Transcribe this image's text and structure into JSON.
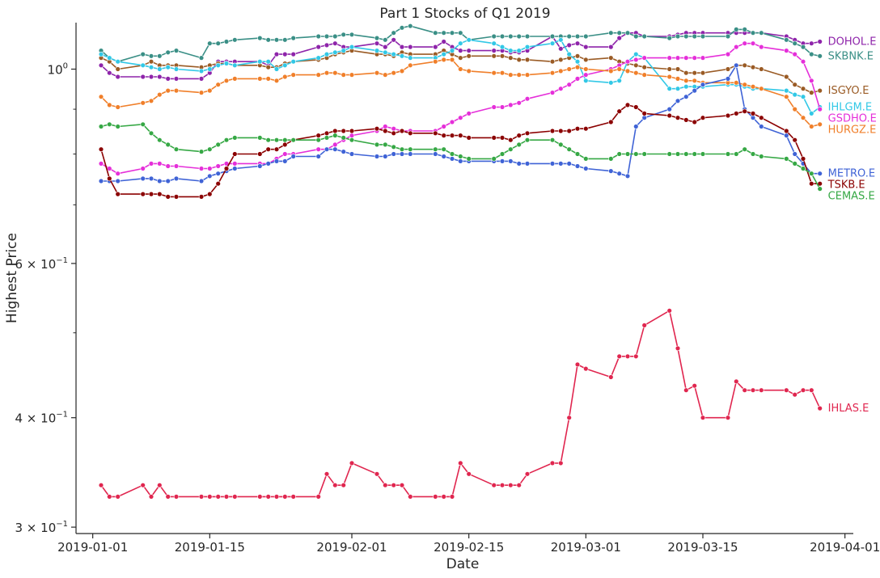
{
  "chart_data": {
    "type": "line",
    "title": "Part 1 Stocks of Q1 2019",
    "xlabel": "Date",
    "ylabel": "Highest Price",
    "yscale": "log",
    "ylim": [
      0.295,
      1.13
    ],
    "xlim": [
      "2018-12-30",
      "2019-04-02"
    ],
    "x_ticks": [
      "2019-01-01",
      "2019-01-15",
      "2019-02-01",
      "2019-02-15",
      "2019-03-01",
      "2019-03-15",
      "2019-04-01"
    ],
    "y_ticks": [
      {
        "label": "3 × 10",
        "exp": "−1",
        "value": 0.3
      },
      {
        "label": "4 × 10",
        "exp": "−1",
        "value": 0.4
      },
      {
        "label": "6 × 10",
        "exp": "−1",
        "value": 0.6
      },
      {
        "label": "10",
        "exp": "0",
        "value": 1.0
      }
    ],
    "grid": false,
    "legend": "inline labels at right end of each series",
    "dates": [
      "2019-01-02",
      "2019-01-03",
      "2019-01-04",
      "2019-01-07",
      "2019-01-08",
      "2019-01-09",
      "2019-01-10",
      "2019-01-11",
      "2019-01-14",
      "2019-01-15",
      "2019-01-16",
      "2019-01-17",
      "2019-01-18",
      "2019-01-21",
      "2019-01-22",
      "2019-01-23",
      "2019-01-24",
      "2019-01-25",
      "2019-01-28",
      "2019-01-29",
      "2019-01-30",
      "2019-01-31",
      "2019-02-01",
      "2019-02-04",
      "2019-02-05",
      "2019-02-06",
      "2019-02-07",
      "2019-02-08",
      "2019-02-11",
      "2019-02-12",
      "2019-02-13",
      "2019-02-14",
      "2019-02-15",
      "2019-02-18",
      "2019-02-19",
      "2019-02-20",
      "2019-02-21",
      "2019-02-22",
      "2019-02-25",
      "2019-02-26",
      "2019-02-27",
      "2019-02-28",
      "2019-03-01",
      "2019-03-04",
      "2019-03-05",
      "2019-03-06",
      "2019-03-07",
      "2019-03-08",
      "2019-03-11",
      "2019-03-12",
      "2019-03-13",
      "2019-03-14",
      "2019-03-15",
      "2019-03-18",
      "2019-03-19",
      "2019-03-20",
      "2019-03-21",
      "2019-03-22",
      "2019-03-25",
      "2019-03-26",
      "2019-03-27",
      "2019-03-28",
      "2019-03-29"
    ],
    "series": [
      {
        "name": "DOHOL.E",
        "color": "#8e24aa",
        "values": [
          1.01,
          0.99,
          0.98,
          0.98,
          0.98,
          0.98,
          0.975,
          0.975,
          0.975,
          0.99,
          1.02,
          1.02,
          1.02,
          1.02,
          1.01,
          1.04,
          1.04,
          1.04,
          1.06,
          1.065,
          1.07,
          1.06,
          1.06,
          1.07,
          1.06,
          1.08,
          1.06,
          1.06,
          1.06,
          1.075,
          1.06,
          1.05,
          1.05,
          1.05,
          1.05,
          1.045,
          1.045,
          1.05,
          1.09,
          1.055,
          1.065,
          1.07,
          1.06,
          1.06,
          1.085,
          1.1,
          1.1,
          1.09,
          1.09,
          1.095,
          1.1,
          1.1,
          1.1,
          1.1,
          1.1,
          1.1,
          1.1,
          1.1,
          1.09,
          1.08,
          1.07,
          1.07,
          1.075
        ]
      },
      {
        "name": "SKBNK.E",
        "color": "#3a8f86",
        "values": [
          1.05,
          1.03,
          1.02,
          1.04,
          1.035,
          1.035,
          1.045,
          1.05,
          1.03,
          1.07,
          1.07,
          1.075,
          1.08,
          1.085,
          1.08,
          1.08,
          1.08,
          1.085,
          1.09,
          1.09,
          1.09,
          1.095,
          1.095,
          1.085,
          1.08,
          1.1,
          1.115,
          1.12,
          1.1,
          1.1,
          1.1,
          1.1,
          1.08,
          1.09,
          1.09,
          1.09,
          1.09,
          1.09,
          1.09,
          1.09,
          1.09,
          1.09,
          1.09,
          1.1,
          1.1,
          1.1,
          1.09,
          1.09,
          1.085,
          1.09,
          1.09,
          1.09,
          1.09,
          1.09,
          1.11,
          1.11,
          1.1,
          1.1,
          1.08,
          1.07,
          1.06,
          1.04,
          1.035
        ]
      },
      {
        "name": "ISGYO.E",
        "color": "#9a5b25",
        "values": [
          1.03,
          1.02,
          1.0,
          1.01,
          1.02,
          1.01,
          1.01,
          1.01,
          1.005,
          1.01,
          1.015,
          1.015,
          1.01,
          1.01,
          1.005,
          1.005,
          1.015,
          1.02,
          1.025,
          1.03,
          1.04,
          1.045,
          1.05,
          1.04,
          1.04,
          1.035,
          1.045,
          1.04,
          1.04,
          1.05,
          1.04,
          1.03,
          1.035,
          1.035,
          1.035,
          1.03,
          1.025,
          1.025,
          1.02,
          1.025,
          1.03,
          1.035,
          1.025,
          1.03,
          1.02,
          1.015,
          1.01,
          1.005,
          1.0,
          1.0,
          0.99,
          0.99,
          0.99,
          1.0,
          1.01,
          1.01,
          1.005,
          1.0,
          0.98,
          0.96,
          0.95,
          0.94,
          0.945
        ]
      },
      {
        "name": "IHLGM.E",
        "color": "#32c8e6",
        "values": [
          1.04,
          1.03,
          1.02,
          1.01,
          1.005,
          1.0,
          1.005,
          1.0,
          0.995,
          1.0,
          1.01,
          1.015,
          1.01,
          1.02,
          1.02,
          1.0,
          1.01,
          1.02,
          1.03,
          1.04,
          1.045,
          1.05,
          1.06,
          1.05,
          1.045,
          1.04,
          1.035,
          1.03,
          1.03,
          1.04,
          1.05,
          1.07,
          1.08,
          1.07,
          1.06,
          1.05,
          1.05,
          1.06,
          1.07,
          1.08,
          1.04,
          1.02,
          0.97,
          0.965,
          0.97,
          1.02,
          1.04,
          1.03,
          0.95,
          0.95,
          0.955,
          0.955,
          0.955,
          0.96,
          0.96,
          0.955,
          0.95,
          0.95,
          0.945,
          0.935,
          0.93,
          0.89,
          0.905
        ]
      },
      {
        "name": "GSDHO.E",
        "color": "#e52fd9",
        "values": [
          0.78,
          0.77,
          0.76,
          0.77,
          0.78,
          0.78,
          0.775,
          0.775,
          0.77,
          0.77,
          0.775,
          0.78,
          0.78,
          0.78,
          0.78,
          0.79,
          0.8,
          0.8,
          0.81,
          0.81,
          0.82,
          0.83,
          0.84,
          0.85,
          0.86,
          0.855,
          0.85,
          0.85,
          0.85,
          0.86,
          0.87,
          0.88,
          0.89,
          0.905,
          0.905,
          0.91,
          0.915,
          0.925,
          0.94,
          0.95,
          0.96,
          0.975,
          0.985,
          1.0,
          1.01,
          1.02,
          1.025,
          1.03,
          1.03,
          1.03,
          1.03,
          1.03,
          1.03,
          1.04,
          1.06,
          1.07,
          1.07,
          1.06,
          1.05,
          1.04,
          1.02,
          0.97,
          0.9
        ]
      },
      {
        "name": "HURGZ.E",
        "color": "#f07f2a",
        "values": [
          0.93,
          0.91,
          0.905,
          0.915,
          0.92,
          0.935,
          0.945,
          0.945,
          0.94,
          0.945,
          0.96,
          0.97,
          0.975,
          0.975,
          0.975,
          0.97,
          0.98,
          0.985,
          0.985,
          0.99,
          0.99,
          0.985,
          0.985,
          0.99,
          0.985,
          0.99,
          0.995,
          1.01,
          1.02,
          1.025,
          1.025,
          1.0,
          0.995,
          0.99,
          0.99,
          0.985,
          0.985,
          0.985,
          0.99,
          0.995,
          1.0,
          1.005,
          1.0,
          0.995,
          1.0,
          0.995,
          0.99,
          0.985,
          0.98,
          0.975,
          0.97,
          0.97,
          0.965,
          0.965,
          0.965,
          0.96,
          0.955,
          0.95,
          0.93,
          0.9,
          0.88,
          0.86,
          0.865
        ]
      },
      {
        "name": "METRO.E",
        "color": "#3f63d6",
        "values": [
          0.745,
          0.745,
          0.745,
          0.75,
          0.75,
          0.745,
          0.745,
          0.75,
          0.745,
          0.755,
          0.76,
          0.765,
          0.77,
          0.775,
          0.78,
          0.785,
          0.785,
          0.795,
          0.795,
          0.81,
          0.81,
          0.805,
          0.8,
          0.795,
          0.795,
          0.8,
          0.8,
          0.8,
          0.8,
          0.795,
          0.79,
          0.785,
          0.785,
          0.785,
          0.785,
          0.785,
          0.78,
          0.78,
          0.78,
          0.78,
          0.78,
          0.775,
          0.77,
          0.765,
          0.76,
          0.755,
          0.86,
          0.88,
          0.9,
          0.92,
          0.93,
          0.945,
          0.96,
          0.975,
          1.01,
          0.9,
          0.88,
          0.86,
          0.84,
          0.8,
          0.78,
          0.76,
          0.76
        ]
      },
      {
        "name": "TSKB.E",
        "color": "#8b0000",
        "values": [
          0.81,
          0.75,
          0.72,
          0.72,
          0.72,
          0.72,
          0.715,
          0.715,
          0.715,
          0.72,
          0.74,
          0.77,
          0.8,
          0.8,
          0.81,
          0.81,
          0.82,
          0.83,
          0.84,
          0.845,
          0.85,
          0.85,
          0.85,
          0.855,
          0.85,
          0.845,
          0.85,
          0.845,
          0.845,
          0.84,
          0.84,
          0.84,
          0.835,
          0.835,
          0.835,
          0.83,
          0.84,
          0.845,
          0.85,
          0.85,
          0.85,
          0.855,
          0.855,
          0.87,
          0.895,
          0.91,
          0.905,
          0.89,
          0.885,
          0.88,
          0.875,
          0.87,
          0.88,
          0.885,
          0.89,
          0.895,
          0.89,
          0.88,
          0.85,
          0.83,
          0.79,
          0.74,
          0.74
        ]
      },
      {
        "name": "CEMAS.E",
        "color": "#36a845",
        "values": [
          0.86,
          0.865,
          0.86,
          0.865,
          0.845,
          0.83,
          0.82,
          0.81,
          0.805,
          0.81,
          0.82,
          0.83,
          0.835,
          0.835,
          0.83,
          0.83,
          0.83,
          0.83,
          0.83,
          0.835,
          0.84,
          0.835,
          0.83,
          0.82,
          0.82,
          0.815,
          0.81,
          0.81,
          0.81,
          0.81,
          0.8,
          0.795,
          0.79,
          0.79,
          0.8,
          0.81,
          0.82,
          0.83,
          0.83,
          0.82,
          0.81,
          0.8,
          0.79,
          0.79,
          0.8,
          0.8,
          0.8,
          0.8,
          0.8,
          0.8,
          0.8,
          0.8,
          0.8,
          0.8,
          0.8,
          0.81,
          0.8,
          0.795,
          0.79,
          0.78,
          0.77,
          0.76,
          0.73
        ]
      },
      {
        "name": "IHLAS.E",
        "color": "#e0264f",
        "values": [
          0.335,
          0.325,
          0.325,
          0.335,
          0.325,
          0.335,
          0.325,
          0.325,
          0.325,
          0.325,
          0.325,
          0.325,
          0.325,
          0.325,
          0.325,
          0.325,
          0.325,
          0.325,
          0.325,
          0.345,
          0.335,
          0.335,
          0.355,
          0.345,
          0.335,
          0.335,
          0.335,
          0.325,
          0.325,
          0.325,
          0.325,
          0.355,
          0.345,
          0.335,
          0.335,
          0.335,
          0.335,
          0.345,
          0.355,
          0.355,
          0.4,
          0.46,
          0.455,
          0.445,
          0.47,
          0.47,
          0.47,
          0.51,
          0.53,
          0.48,
          0.43,
          0.435,
          0.4,
          0.4,
          0.44,
          0.43,
          0.43,
          0.43,
          0.43,
          0.425,
          0.43,
          0.43,
          0.41
        ]
      }
    ],
    "end_labels": [
      "DOHOL.E",
      "SKBNK.E",
      "ISGYO.E",
      "IHLGM.E",
      "GSDHO.E",
      "HURGZ.E",
      "METRO.E",
      "TSKB.E",
      "CEMAS.E",
      "IHLAS.E"
    ]
  }
}
